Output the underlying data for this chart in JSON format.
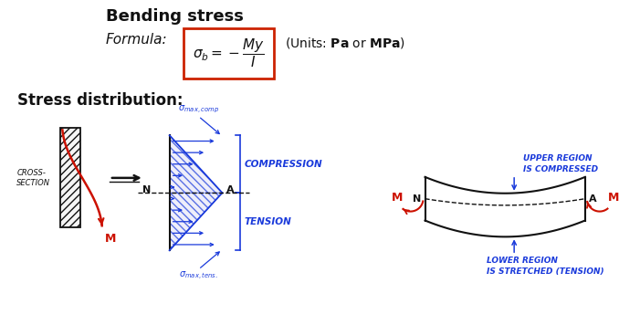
{
  "title": "Bending stress",
  "formula_label": "Formula:",
  "units_text": "(Units: $\\mathbf{Pa}$ or $\\mathbf{MPa}$)",
  "stress_dist_label": "Stress distribution:",
  "compression_label": "COMPRESSION",
  "tension_label": "TENSION",
  "upper_region_text": "UPPER REGION\nIS COMPRESSED",
  "lower_region_text": "LOWER REGION\nIS STRETCHED (TENSION)",
  "bg_color": "#ffffff",
  "box_color": "#cc2200",
  "blue_color": "#1a3adb",
  "red_color": "#cc1100",
  "black_color": "#111111"
}
